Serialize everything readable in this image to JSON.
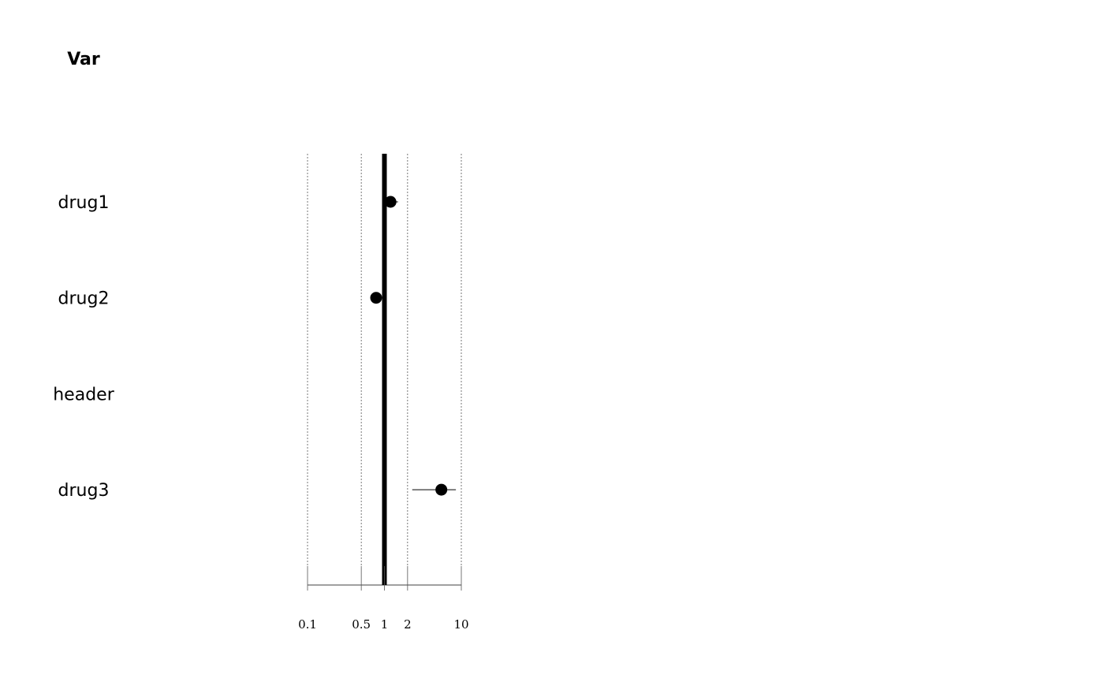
{
  "chart_data": {
    "type": "forest",
    "column_header": "Var",
    "scale": "log",
    "xlim": [
      0.1,
      10
    ],
    "x_ticks": [
      0.1,
      0.5,
      1,
      2,
      10
    ],
    "x_tick_labels": [
      "0.1",
      "0.5",
      "1",
      "2",
      "10"
    ],
    "reference_line": 1,
    "gridlines": "dotted",
    "rows": [
      {
        "label": "drug1",
        "estimate": 1.2,
        "lower": 0.95,
        "upper": 1.5
      },
      {
        "label": "drug2",
        "estimate": 0.78,
        "lower": 0.75,
        "upper": 0.82
      },
      {
        "label": "header",
        "estimate": null,
        "lower": null,
        "upper": null
      },
      {
        "label": "drug3",
        "estimate": 5.5,
        "lower": 2.3,
        "upper": 8.5
      }
    ]
  }
}
